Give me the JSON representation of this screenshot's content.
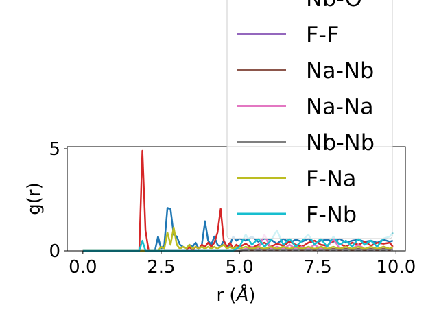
{
  "chart_data": {
    "type": "line",
    "xlabel_main": "r (",
    "xlabel_unit": "Å",
    "xlabel_close": ")",
    "ylabel": "g(r)",
    "xlim": [
      -0.5,
      10.3
    ],
    "ylim": [
      0,
      5.1
    ],
    "xticks": [
      0.0,
      2.5,
      5.0,
      7.5,
      10.0
    ],
    "xtick_labels": [
      "0.0",
      "2.5",
      "5.0",
      "7.5",
      "10.0"
    ],
    "yticks": [
      0,
      5
    ],
    "ytick_labels": [
      "0",
      "5"
    ],
    "legend_position": "upper-right (overlapping plot, partially clipped at top)",
    "x": [
      0.0,
      0.5,
      1.0,
      1.5,
      1.8,
      1.9,
      2.0,
      2.1,
      2.2,
      2.3,
      2.4,
      2.5,
      2.6,
      2.7,
      2.8,
      2.9,
      3.0,
      3.1,
      3.2,
      3.3,
      3.4,
      3.5,
      3.6,
      3.7,
      3.8,
      3.9,
      4.0,
      4.1,
      4.2,
      4.3,
      4.4,
      4.5,
      4.6,
      4.7,
      4.8,
      4.9,
      5.0,
      5.2,
      5.4,
      5.6,
      5.8,
      6.0,
      6.2,
      6.4,
      6.6,
      6.8,
      7.0,
      7.2,
      7.4,
      7.6,
      7.8,
      8.0,
      8.2,
      8.4,
      8.6,
      8.8,
      9.0,
      9.2,
      9.4,
      9.6,
      9.8,
      9.9
    ],
    "series": [
      {
        "name": "",
        "color": "#1f77b4",
        "values": [
          0,
          0,
          0,
          0,
          0,
          0,
          0,
          0,
          0,
          0,
          0.7,
          0.1,
          0.3,
          2.1,
          2.05,
          0.8,
          0.7,
          0.3,
          0.2,
          0.1,
          0.3,
          0.2,
          0.4,
          0.1,
          0.3,
          1.45,
          0.5,
          0.3,
          0.7,
          0.3,
          0.2,
          0.5,
          0.2,
          0.3,
          0.7,
          0.5,
          0.6,
          0.5,
          0.7,
          0.45,
          0.6,
          0.55,
          0.35,
          0.6,
          0.4,
          0.55,
          0.45,
          0.6,
          0.35,
          0.5,
          0.55,
          0.45,
          0.6,
          0.4,
          0.5,
          0.55,
          0.45,
          0.5,
          0.4,
          0.55,
          0.45,
          0.5
        ]
      },
      {
        "name": "Nb-O",
        "color": "#d62728",
        "values": [
          0,
          0,
          0,
          0,
          0,
          4.9,
          1.0,
          0,
          0,
          0,
          0,
          0,
          0,
          0,
          0,
          0,
          0,
          0,
          0,
          0,
          0.2,
          0,
          0.2,
          0.1,
          0.3,
          0.2,
          0.4,
          0.2,
          0.4,
          0.9,
          2.05,
          0.5,
          0.2,
          0.4,
          0.1,
          0.3,
          0.2,
          0.35,
          0.15,
          0.3,
          0.4,
          0.2,
          0.35,
          0.25,
          0.45,
          0.3,
          0.2,
          0.4,
          0.5,
          0.3,
          0.25,
          0.5,
          0.35,
          0.2,
          0.4,
          0.3,
          0.45,
          0.25,
          0.4,
          0.35,
          0.4,
          0.2
        ]
      },
      {
        "name": "F-F",
        "color": "#9467bd",
        "values": [
          0,
          0,
          0,
          0,
          0,
          0,
          0,
          0,
          0,
          0,
          0,
          0,
          0,
          0,
          0,
          0,
          0,
          0,
          0,
          0,
          0,
          0,
          0,
          0,
          0,
          0,
          0,
          0,
          0,
          0,
          0,
          0,
          0,
          0,
          0,
          0,
          0,
          0.05,
          0.1,
          0.05,
          0.1,
          0.05,
          0.1,
          0.05,
          0.1,
          0.05,
          0.1,
          0.05,
          0.1,
          0.05,
          0.1,
          0.05,
          0.1,
          0.05,
          0.1,
          0.05,
          0.1,
          0.05,
          0.1,
          0.05,
          0.1,
          0.05
        ]
      },
      {
        "name": "Na-Nb",
        "color": "#8c564b",
        "values": [
          0,
          0,
          0,
          0,
          0,
          0,
          0,
          0,
          0,
          0,
          0,
          0,
          0,
          0,
          0,
          0,
          0,
          0,
          0,
          0,
          0,
          0,
          0,
          0,
          0,
          0,
          0,
          0,
          0,
          0,
          0,
          0,
          0,
          0,
          0,
          0,
          0,
          0.1,
          0.05,
          0.1,
          0.05,
          0.1,
          0.05,
          0.1,
          0.05,
          0.1,
          0.05,
          0.1,
          0.05,
          0.1,
          0.05,
          0.1,
          0.05,
          0.1,
          0.05,
          0.1,
          0.05,
          0.1,
          0.05,
          0.1,
          0.05,
          0.1
        ]
      },
      {
        "name": "Na-Na",
        "color": "#e377c2",
        "values": [
          0,
          0,
          0,
          0,
          0,
          0,
          0,
          0,
          0,
          0,
          0,
          0,
          0,
          0,
          0,
          0,
          0,
          0,
          0,
          0,
          0,
          0,
          0,
          0,
          0,
          0,
          0,
          0,
          0,
          0,
          0,
          0,
          0,
          0,
          0,
          0,
          0,
          0.1,
          0.2,
          0.1,
          0.8,
          0.1,
          0.2,
          0.1,
          0.3,
          0.1,
          0.2,
          0.1,
          0.3,
          0.1,
          0.2,
          0.6,
          0.1,
          0.2,
          0.1,
          0.3,
          0.1,
          0.2,
          0.1,
          0.2,
          0.1,
          0.2
        ]
      },
      {
        "name": "Nb-Nb",
        "color": "#7f7f7f",
        "values": [
          0,
          0,
          0,
          0,
          0,
          0,
          0,
          0,
          0,
          0,
          0,
          0,
          0,
          0,
          0,
          0,
          0,
          0,
          0,
          0,
          0,
          0,
          0,
          0,
          0,
          0,
          0,
          0,
          0,
          0,
          0,
          0,
          0,
          0,
          0,
          0,
          0,
          0.05,
          0.1,
          0.05,
          0.1,
          0.05,
          0.1,
          0.05,
          0.1,
          0.05,
          0.1,
          0.05,
          0.1,
          0.05,
          0.1,
          0.05,
          0.1,
          0.05,
          0.1,
          0.05,
          0.1,
          0.05,
          0.1,
          0.05,
          0.1,
          0.05
        ]
      },
      {
        "name": "F-Na",
        "color": "#bcbd22",
        "values": [
          0,
          0,
          0,
          0,
          0,
          0,
          0,
          0,
          0,
          0,
          0,
          0.2,
          0.1,
          0.9,
          0.3,
          1.15,
          0.3,
          0.1,
          0.2,
          0.1,
          0.3,
          0.1,
          0.2,
          0.1,
          0.2,
          0.1,
          0.2,
          0.1,
          0.2,
          0.1,
          0.2,
          0.3,
          0.1,
          0.2,
          0.1,
          0.2,
          0.1,
          0.2,
          0.1,
          0.2,
          0.1,
          0.2,
          0.1,
          0.2,
          0.1,
          0.2,
          0.1,
          0.2,
          0.1,
          0.2,
          0.1,
          0.2,
          0.1,
          0.2,
          0.1,
          0.2,
          0.1,
          0.2,
          0.1,
          0.2,
          0.1,
          0.2
        ]
      },
      {
        "name": "F-Nb",
        "color": "#17becf",
        "values": [
          0,
          0,
          0,
          0,
          0,
          0.5,
          0,
          0,
          0,
          0,
          0,
          0,
          0,
          0,
          0,
          0,
          0,
          0,
          0,
          0,
          0,
          0,
          0,
          0,
          0,
          0,
          0,
          0,
          0,
          0,
          0,
          0,
          0,
          0,
          0,
          0.1,
          0.2,
          0.8,
          0.3,
          0.6,
          0.2,
          0.5,
          1.0,
          0.3,
          0.6,
          0.2,
          0.5,
          0.8,
          0.3,
          0.6,
          0.2,
          0.7,
          0.3,
          0.5,
          0.2,
          0.6,
          0.3,
          0.5,
          0.2,
          0.6,
          0.7,
          0.9
        ]
      }
    ]
  }
}
